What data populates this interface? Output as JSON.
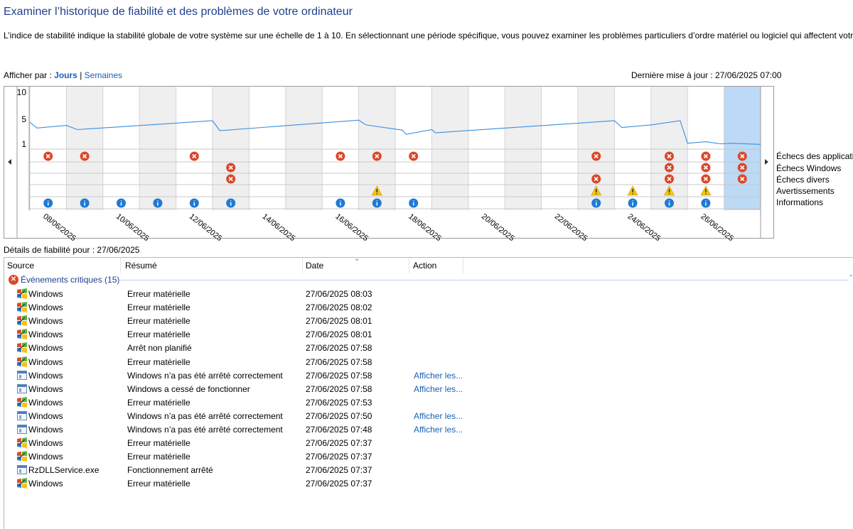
{
  "header": {
    "title": "Examiner l’historique de fiabilité et des problèmes de votre ordinateur",
    "description": "L’indice de stabilité indique la stabilité globale de votre système sur une échelle de 1 à 10. En sélectionnant une période spécifique, vous pouvez examiner les problèmes particuliers d’ordre matériel ou logiciel qui affectent votre système."
  },
  "view_by": {
    "label": "Afficher par :",
    "days": "Jours",
    "separator": "|",
    "weeks": "Semaines"
  },
  "last_update": "Dernière mise à jour : 27/06/2025 07:00",
  "chart": {
    "y_ticks": [
      "10",
      "5",
      "1"
    ],
    "dates": [
      "08/06/2025",
      "10/06/2025",
      "12/06/2025",
      "14/06/2025",
      "16/06/2025",
      "18/06/2025",
      "20/06/2025",
      "22/06/2025",
      "24/06/2025",
      "26/06/2025"
    ],
    "row_labels": [
      "Échecs des applications",
      "Échecs Windows",
      "Échecs divers",
      "Avertissements",
      "Informations"
    ],
    "selected_day_index": 19,
    "stability": [
      [
        0,
        5.3
      ],
      [
        0.2,
        4.2
      ],
      [
        1,
        4.7
      ],
      [
        1.3,
        3.9
      ],
      [
        5,
        5.6
      ],
      [
        5.2,
        3.7
      ],
      [
        9,
        5.7
      ],
      [
        9.2,
        4.8
      ],
      [
        10.2,
        3.8
      ],
      [
        10.3,
        3.0
      ],
      [
        11,
        3.9
      ],
      [
        11.1,
        3.3
      ],
      [
        16,
        5.6
      ],
      [
        16.2,
        4.3
      ],
      [
        17,
        4.8
      ],
      [
        17.8,
        5.6
      ],
      [
        18,
        1.3
      ],
      [
        18.5,
        1.6
      ],
      [
        18.9,
        1.2
      ],
      [
        19.2,
        1.3
      ],
      [
        20,
        1.1
      ]
    ],
    "app_failures": [
      0,
      1,
      4,
      8,
      9,
      10,
      15,
      17,
      18,
      19
    ],
    "windows_failures": [
      5,
      17,
      18,
      19
    ],
    "misc_failures": [
      5,
      15,
      17,
      18,
      19
    ],
    "warnings": [
      9,
      15,
      16,
      17,
      18
    ],
    "infos": [
      0,
      1,
      2,
      3,
      4,
      5,
      8,
      9,
      10,
      15,
      16,
      17,
      18
    ]
  },
  "details": {
    "label": "Détails de fiabilité pour : 27/06/2025",
    "columns": {
      "source": "Source",
      "summary": "Résumé",
      "date": "Date",
      "action": "Action"
    },
    "group_title": "Événements critiques (15)",
    "rows": [
      {
        "icon": "win",
        "source": "Windows",
        "summary": "Erreur matérielle",
        "date": "27/06/2025 08:03",
        "action": ""
      },
      {
        "icon": "win",
        "source": "Windows",
        "summary": "Erreur matérielle",
        "date": "27/06/2025 08:02",
        "action": ""
      },
      {
        "icon": "win",
        "source": "Windows",
        "summary": "Erreur matérielle",
        "date": "27/06/2025 08:01",
        "action": ""
      },
      {
        "icon": "win",
        "source": "Windows",
        "summary": "Erreur matérielle",
        "date": "27/06/2025 08:01",
        "action": ""
      },
      {
        "icon": "win",
        "source": "Windows",
        "summary": "Arrêt non planifié",
        "date": "27/06/2025 07:58",
        "action": ""
      },
      {
        "icon": "win",
        "source": "Windows",
        "summary": "Erreur matérielle",
        "date": "27/06/2025 07:58",
        "action": ""
      },
      {
        "icon": "app",
        "source": "Windows",
        "summary": "Windows n’a pas été arrêté correctement",
        "date": "27/06/2025 07:58",
        "action": "Afficher les..."
      },
      {
        "icon": "app",
        "source": "Windows",
        "summary": "Windows a cessé de fonctionner",
        "date": "27/06/2025 07:58",
        "action": "Afficher les..."
      },
      {
        "icon": "win",
        "source": "Windows",
        "summary": "Erreur matérielle",
        "date": "27/06/2025 07:53",
        "action": ""
      },
      {
        "icon": "app",
        "source": "Windows",
        "summary": "Windows n’a pas été arrêté correctement",
        "date": "27/06/2025 07:50",
        "action": "Afficher les..."
      },
      {
        "icon": "app",
        "source": "Windows",
        "summary": "Windows n’a pas été arrêté correctement",
        "date": "27/06/2025 07:48",
        "action": "Afficher les..."
      },
      {
        "icon": "win",
        "source": "Windows",
        "summary": "Erreur matérielle",
        "date": "27/06/2025 07:37",
        "action": ""
      },
      {
        "icon": "win",
        "source": "Windows",
        "summary": "Erreur matérielle",
        "date": "27/06/2025 07:37",
        "action": ""
      },
      {
        "icon": "app",
        "source": "RzDLLService.exe",
        "summary": "Fonctionnement arrêté",
        "date": "27/06/2025 07:37",
        "action": ""
      },
      {
        "icon": "win",
        "source": "Windows",
        "summary": "Erreur matérielle",
        "date": "27/06/2025 07:37",
        "action": ""
      }
    ]
  },
  "colors": {
    "error": "#d9482b",
    "info": "#1f7ad6",
    "warning": "#f0c419",
    "line": "#3b8ee0",
    "selected": "#bcd9f5",
    "shade": "#efefef"
  }
}
